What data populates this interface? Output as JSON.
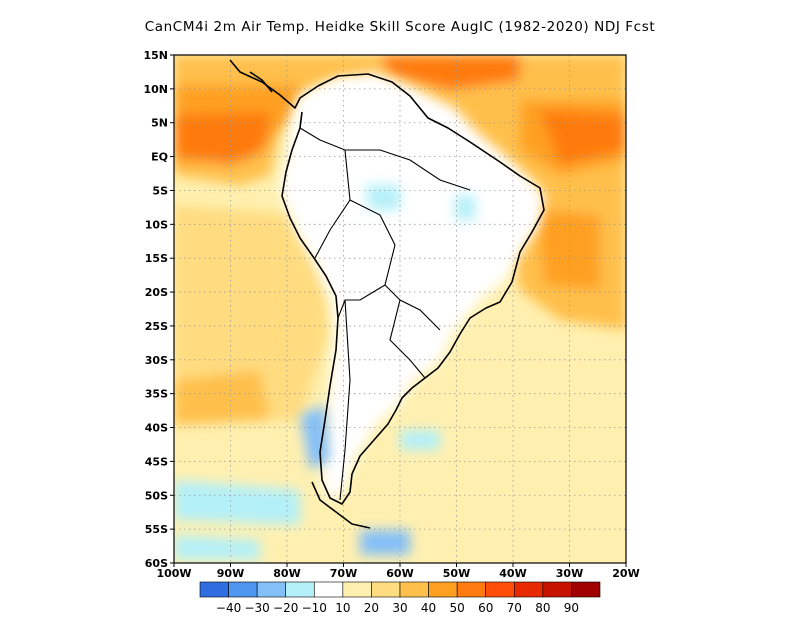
{
  "title": "CanCM4i   2m Air Temp. Heidke Skill Score AugIC (1982-2020) NDJ Fcst",
  "lat_labels": [
    "15N",
    "10N",
    "5N",
    "EQ",
    "5S",
    "10S",
    "15S",
    "20S",
    "25S",
    "30S",
    "35S",
    "40S",
    "45S",
    "50S",
    "55S",
    "60S"
  ],
  "lon_labels": [
    "100W",
    "90W",
    "80W",
    "70W",
    "60W",
    "50W",
    "40W",
    "30W",
    "20W"
  ],
  "colorbar": {
    "colors": [
      "#2e6ee0",
      "#4e96f0",
      "#84bff8",
      "#b4f0f8",
      "#ffffff",
      "#fff0b0",
      "#ffdc80",
      "#ffc04c",
      "#ffa020",
      "#ff7a10",
      "#ff4e08",
      "#e82a00",
      "#c81200",
      "#a00000"
    ],
    "labels": [
      "-40",
      "-30",
      "-20",
      "-10",
      "10",
      "20",
      "30",
      "40",
      "50",
      "60",
      "70",
      "80",
      "90"
    ]
  }
}
